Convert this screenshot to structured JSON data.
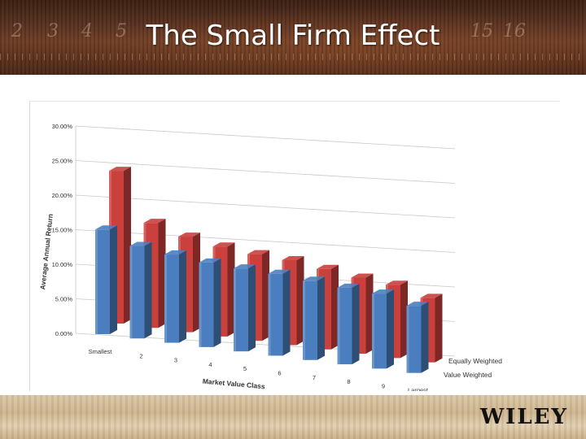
{
  "header": {
    "title": "The Small Firm Effect",
    "background_digits": [
      "2",
      "3",
      "4",
      "5",
      "15",
      "16"
    ]
  },
  "footer": {
    "logo": "WILEY"
  },
  "colors": {
    "equally_weighted": "#c9403d",
    "value_weighted": "#4a7ebf"
  },
  "chart_data": {
    "type": "bar",
    "title": "",
    "xlabel": "Market Value Class",
    "ylabel": "Average Annual Return",
    "ylim": [
      0,
      0.3
    ],
    "y_ticks": [
      "0.00%",
      "5.00%",
      "10.00%",
      "15.00%",
      "20.00%",
      "25.00%",
      "30.00%"
    ],
    "categories": [
      "Smallest",
      "2",
      "3",
      "4",
      "5",
      "6",
      "7",
      "8",
      "9",
      "Largest"
    ],
    "series": [
      {
        "name": "Equally Weighted",
        "values": [
          0.275,
          0.189,
          0.172,
          0.162,
          0.156,
          0.153,
          0.145,
          0.137,
          0.132,
          0.116
        ]
      },
      {
        "name": "Value Weighted",
        "values": [
          0.198,
          0.175,
          0.167,
          0.16,
          0.157,
          0.155,
          0.15,
          0.145,
          0.142,
          0.127
        ]
      }
    ],
    "grid": true,
    "legend_position": "right, along depth axis"
  }
}
